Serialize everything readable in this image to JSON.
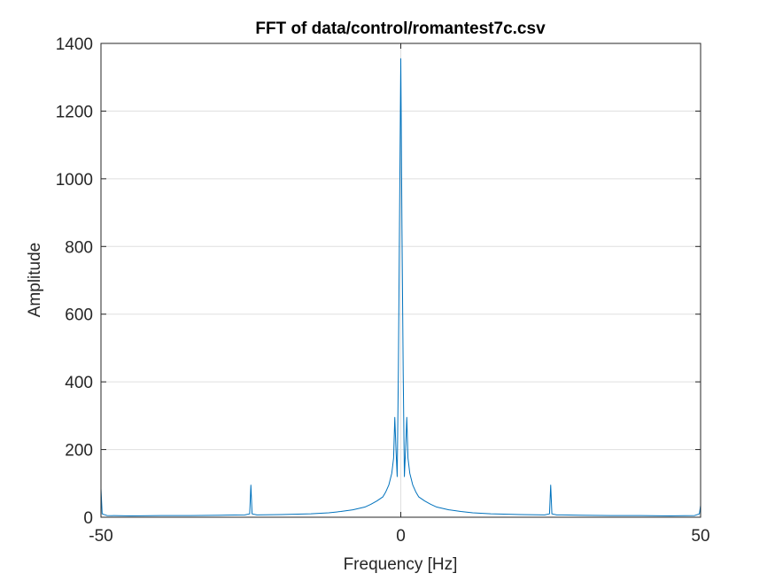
{
  "chart_data": {
    "type": "line",
    "title": "FFT of data/control/romantest7c.csv",
    "xlabel": "Frequency [Hz]",
    "ylabel": "Amplitude",
    "xlim": [
      -50,
      50
    ],
    "ylim": [
      0,
      1400
    ],
    "xticks": [
      -50,
      0,
      50
    ],
    "xtick_labels": [
      "-50",
      "0",
      "50"
    ],
    "yticks": [
      0,
      200,
      400,
      600,
      800,
      1000,
      1200,
      1400
    ],
    "ytick_labels": [
      "0",
      "200",
      "400",
      "600",
      "800",
      "1000",
      "1200",
      "1400"
    ],
    "grid": true,
    "line_color": "#0072BD",
    "series": [
      {
        "x": [
          -50,
          -49.8,
          -49,
          -45,
          -40,
          -35,
          -30,
          -26,
          -25.2,
          -25,
          -24.8,
          -24,
          -20,
          -15,
          -12,
          -10,
          -8,
          -6,
          -5,
          -4,
          -3,
          -2.5,
          -2,
          -1.5,
          -1.2,
          -1,
          -0.8,
          -0.6,
          -0.4,
          -0.2,
          0,
          0.2,
          0.4,
          0.6,
          0.8,
          1,
          1.2,
          1.5,
          2,
          2.5,
          3,
          4,
          5,
          6,
          8,
          10,
          12,
          15,
          20,
          24,
          24.8,
          25,
          25.2,
          26,
          30,
          35,
          40,
          45,
          49,
          49.8,
          50
        ],
        "y": [
          85,
          10,
          5,
          4,
          5,
          5,
          6,
          7,
          10,
          95,
          10,
          7,
          8,
          10,
          13,
          17,
          22,
          30,
          38,
          48,
          60,
          75,
          95,
          130,
          175,
          295,
          200,
          120,
          435,
          900,
          1355,
          850,
          430,
          120,
          200,
          295,
          175,
          130,
          95,
          75,
          60,
          48,
          38,
          30,
          22,
          17,
          13,
          10,
          8,
          7,
          10,
          95,
          10,
          7,
          6,
          5,
          5,
          4,
          5,
          10,
          35
        ]
      }
    ]
  }
}
